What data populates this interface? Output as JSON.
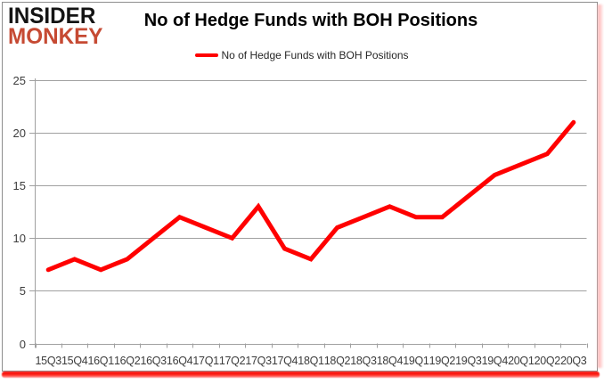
{
  "header": {
    "logo": {
      "line1": "INSIDER",
      "line2": "MONKEY"
    },
    "title": "No of Hedge Funds with BOH Positions"
  },
  "legend": {
    "label": "No of Hedge Funds with BOH Positions",
    "marker_color": "#ff0000"
  },
  "colors": {
    "series_red": "#ff0000",
    "logo_red": "#c64a33",
    "grid_gray": "#a0a0a0",
    "axis_text": "#3d3d3d",
    "underline_red": "#f20400"
  },
  "chart_data": {
    "type": "line",
    "title": "No of Hedge Funds with BOH Positions",
    "categories": [
      "15Q3",
      "15Q4",
      "16Q1",
      "16Q2",
      "16Q3",
      "16Q4",
      "17Q1",
      "17Q2",
      "17Q3",
      "17Q4",
      "18Q1",
      "18Q2",
      "18Q3",
      "18Q4",
      "19Q1",
      "19Q2",
      "19Q3",
      "19Q4",
      "20Q1",
      "20Q2",
      "20Q3"
    ],
    "series": [
      {
        "name": "No of Hedge Funds with BOH Positions",
        "color": "#ff0000",
        "values": [
          7,
          8,
          7,
          8,
          10,
          12,
          11,
          10,
          13,
          9,
          8,
          11,
          12,
          13,
          12,
          12,
          14,
          16,
          17,
          18,
          21
        ]
      }
    ],
    "xlabel": "",
    "ylabel": "",
    "ylim": [
      0,
      25
    ],
    "ytick_step": 5,
    "grid": true,
    "legend_position": "top-center"
  }
}
